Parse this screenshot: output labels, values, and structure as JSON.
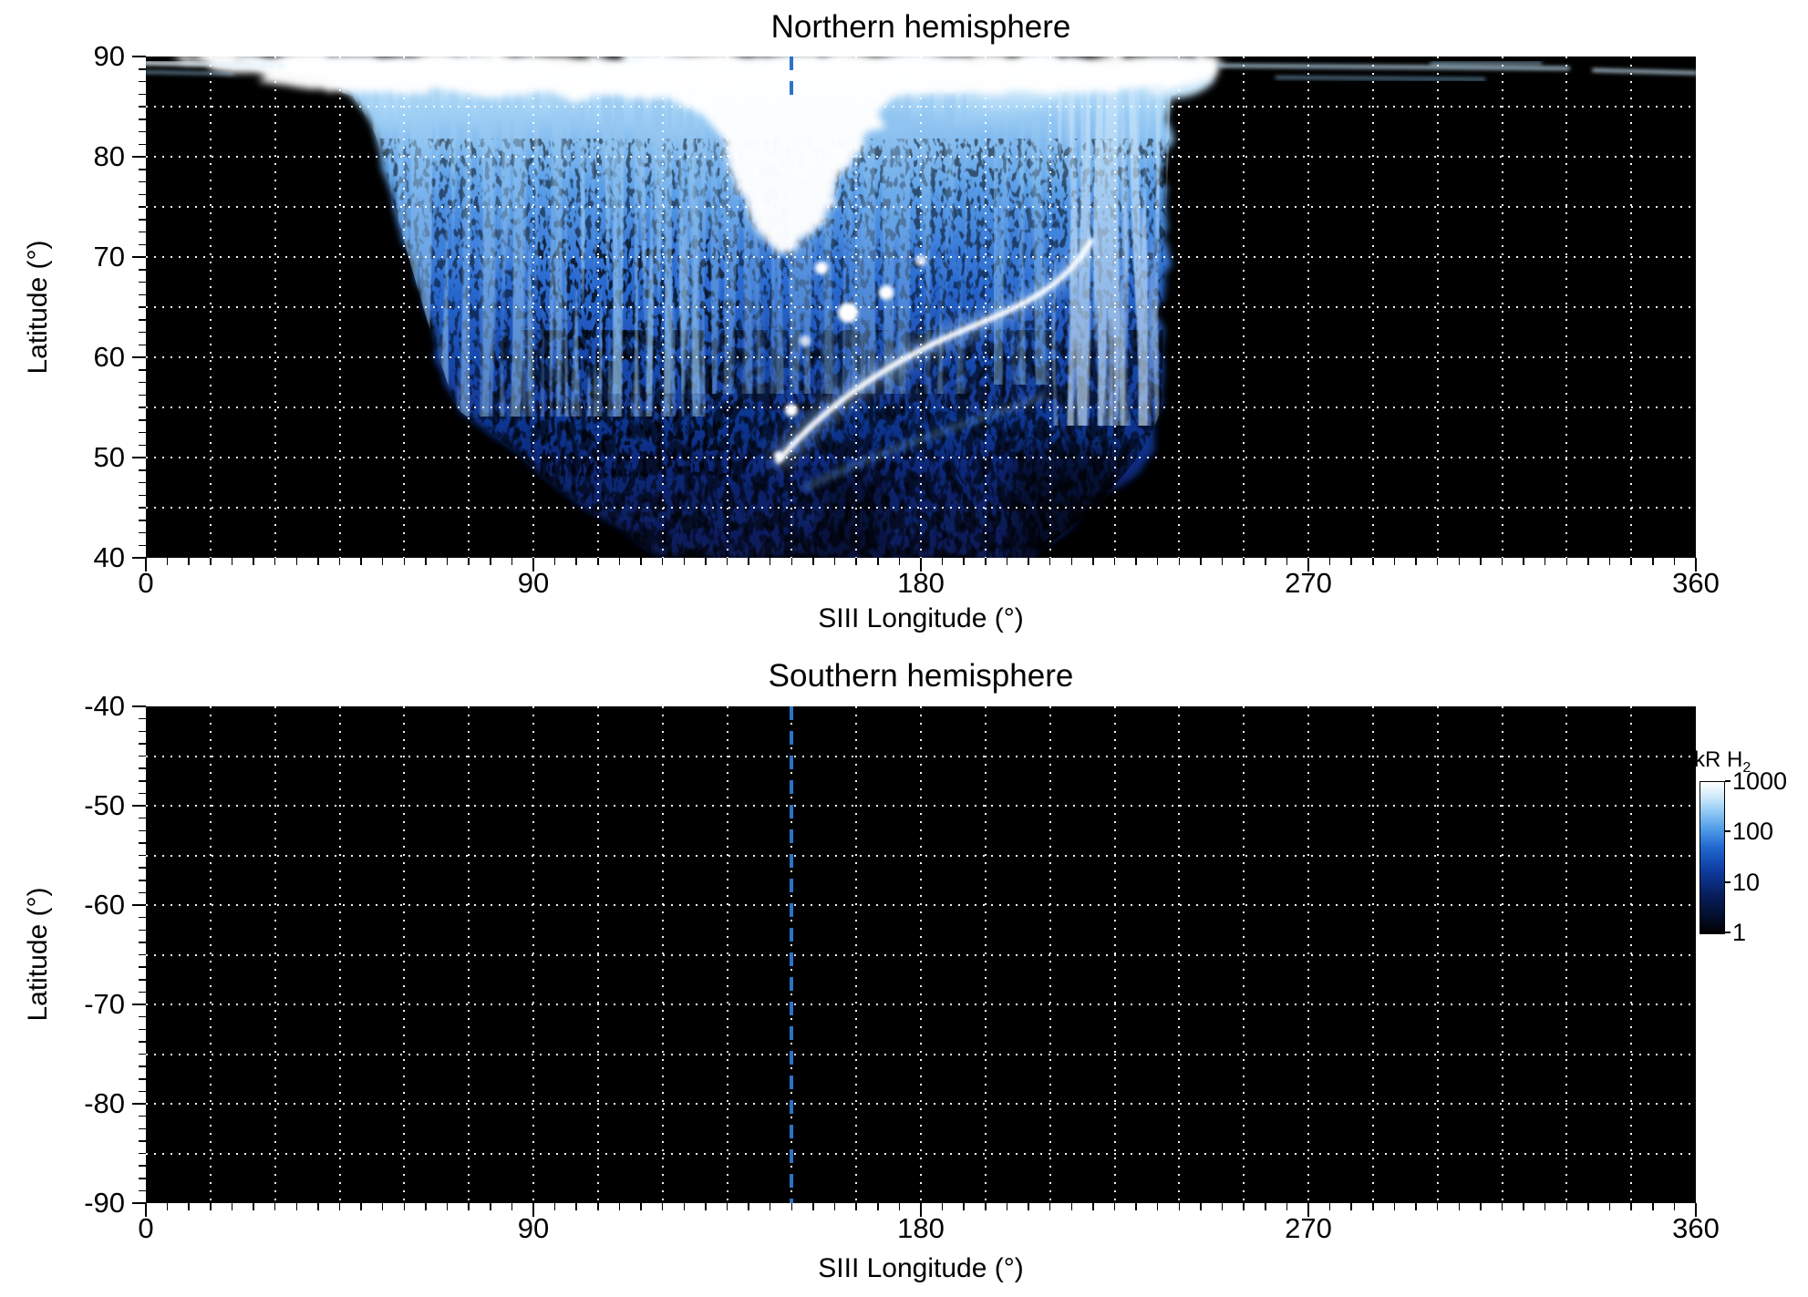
{
  "figure": {
    "north": {
      "title": "Northern hemisphere",
      "xlabel": "SIII Longitude (°)",
      "ylabel": "Latitude (°)",
      "x_tick_labels": [
        "0",
        "90",
        "180",
        "270",
        "360"
      ],
      "y_tick_labels": [
        "90",
        "80",
        "70",
        "60",
        "50",
        "40"
      ]
    },
    "south": {
      "title": "Southern hemisphere",
      "xlabel": "SIII Longitude (°)",
      "ylabel": "Latitude (°)",
      "x_tick_labels": [
        "0",
        "90",
        "180",
        "270",
        "360"
      ],
      "y_tick_labels": [
        "-40",
        "-50",
        "-60",
        "-70",
        "-80",
        "-90"
      ]
    },
    "colorbar": {
      "title_main": "kR H",
      "title_sub": "2",
      "tick_labels": [
        "1000",
        "100",
        "10",
        "1"
      ],
      "gradient_stops": [
        "#000000 0%",
        "#04102f 12%",
        "#081f5f 26%",
        "#0e3da2 42%",
        "#2268cf 57%",
        "#4f9ce8 69%",
        "#8ec8f4 80%",
        "#cfe9fb 90%",
        "#ffffff 100%"
      ]
    }
  },
  "chart_data": [
    {
      "type": "heatmap",
      "title": "Northern hemisphere",
      "xlabel": "SIII Longitude (°)",
      "ylabel": "Latitude (°)",
      "x_range": [
        0,
        360
      ],
      "y_range": [
        40,
        90
      ],
      "x_ticks": [
        0,
        90,
        180,
        270,
        360
      ],
      "y_ticks": [
        90,
        80,
        70,
        60,
        50,
        40
      ],
      "grid": {
        "x_step": 15,
        "y_step": 5,
        "style": "white dotted on black background"
      },
      "background_color": "#000000",
      "colorbar": {
        "label": "kR H2",
        "scale": "log",
        "range": [
          1,
          1000
        ],
        "ticks": [
          1,
          10,
          100,
          1000
        ],
        "colormap": "black → dark blue → blue → light blue → white"
      },
      "reference_line": {
        "orientation": "vertical",
        "style": "dashed",
        "x": 150,
        "color": "#2b72c8"
      },
      "features": [
        {
          "name": "polar bright cap",
          "lon_range": [
            5,
            250
          ],
          "lat_range": [
            86,
            90
          ],
          "intensity": "~1000 kR (saturated white)"
        },
        {
          "name": "central bright funnel",
          "lon_range": [
            115,
            175
          ],
          "lat_range": [
            70,
            90
          ],
          "intensity": "~300-1000 kR white wedge narrowing to lat 70 near lon 148"
        },
        {
          "name": "diffuse emission fan",
          "lon_range": [
            48,
            238
          ],
          "lat_range": [
            40,
            90
          ],
          "intensity": "~5-300 kR mottled blue, brighter toward pole; reaches lat 40 only between lon 118-205"
        },
        {
          "name": "main auroral arc",
          "path_lon_lat": [
            [
              147,
              50
            ],
            [
              158,
              56
            ],
            [
              172,
              60
            ],
            [
              186,
              62
            ],
            [
              202,
              65
            ],
            [
              214,
              69
            ],
            [
              220,
              72
            ]
          ],
          "intensity": "~1000 kR narrow white arc"
        },
        {
          "name": "bright spots",
          "points_lon_lat": [
            [
              163,
              64.5
            ],
            [
              172,
              66.5
            ],
            [
              157,
              69
            ],
            [
              180,
              69.6
            ],
            [
              150,
              54.8
            ],
            [
              147,
              50.2
            ]
          ],
          "intensity": "~500-1000 kR"
        },
        {
          "name": "right-flank striations",
          "lon_range": [
            205,
            238
          ],
          "lat_range": [
            55,
            88
          ],
          "intensity": "~100-300 kR near-vertical streaks"
        },
        {
          "name": "left-flank striations",
          "lon_range": [
            48,
            90
          ],
          "lat_range": [
            55,
            88
          ],
          "intensity": "~30-150 kR slanted streaks"
        },
        {
          "name": "thin high-latitude streaks",
          "lon_range": [
            250,
            360
          ],
          "lat_range": [
            87,
            90
          ],
          "intensity": "~100-300 kR"
        },
        {
          "name": "background",
          "note": "black (below ~1 kR or no data) outside the fan"
        }
      ]
    },
    {
      "type": "heatmap",
      "title": "Southern hemisphere",
      "xlabel": "SIII Longitude (°)",
      "ylabel": "Latitude (°)",
      "x_range": [
        0,
        360
      ],
      "y_range": [
        -90,
        -40
      ],
      "x_ticks": [
        0,
        90,
        180,
        270,
        360
      ],
      "y_ticks": [
        -40,
        -50,
        -60,
        -70,
        -80,
        -90
      ],
      "grid": {
        "x_step": 15,
        "y_step": 5,
        "style": "white dotted on black background"
      },
      "background_color": "#000000",
      "reference_line": {
        "orientation": "vertical",
        "style": "dashed",
        "x": 150,
        "color": "#2b72c8"
      },
      "features": [
        {
          "name": "no emission",
          "note": "entire panel at background level (black)"
        }
      ]
    }
  ]
}
